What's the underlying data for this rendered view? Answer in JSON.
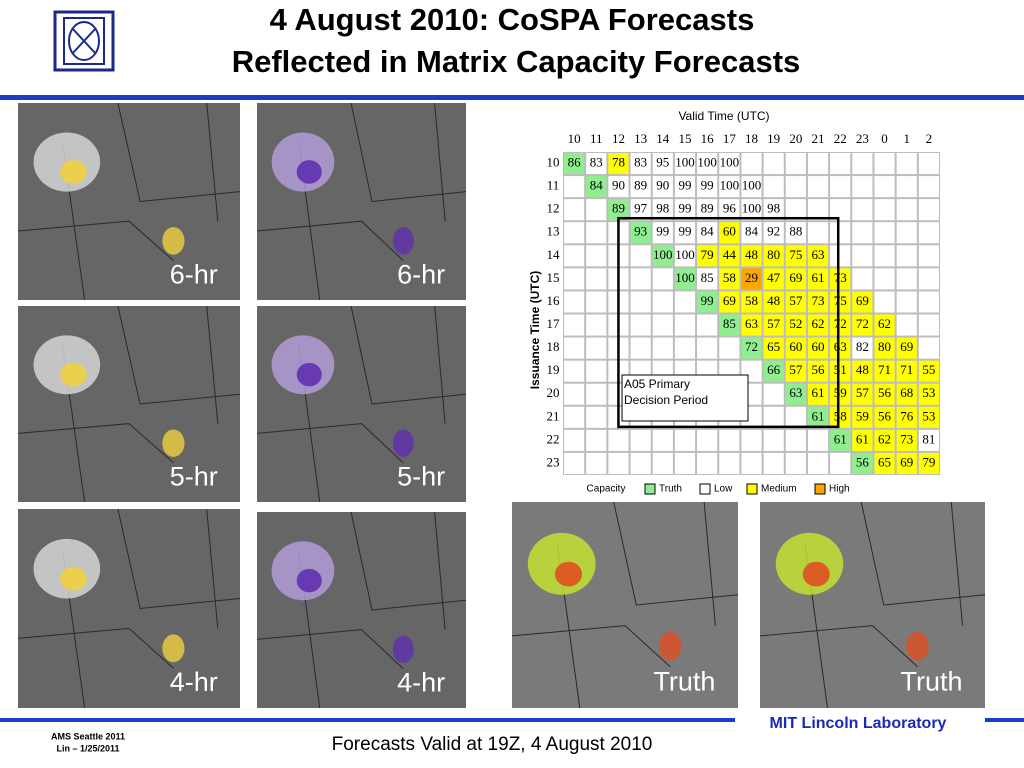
{
  "header": {
    "title_lines": [
      "4 August 2010: CoSPA Forecasts",
      "Reflected in Matrix Capacity Forecasts"
    ]
  },
  "panels": [
    {
      "label": "6-hr",
      "kind": "forecast-gray"
    },
    {
      "label": "6-hr",
      "kind": "forecast-purple"
    },
    {
      "label": "5-hr",
      "kind": "forecast-gray"
    },
    {
      "label": "5-hr",
      "kind": "forecast-purple"
    },
    {
      "label": "4-hr",
      "kind": "forecast-gray"
    },
    {
      "label": "4-hr",
      "kind": "forecast-purple"
    },
    {
      "label": "Truth",
      "kind": "truth"
    },
    {
      "label": "Truth",
      "kind": "truth"
    }
  ],
  "matrix": {
    "x_label": "Valid Time (UTC)",
    "y_label": "Issuance Time (UTC)",
    "columns": [
      "10",
      "11",
      "12",
      "13",
      "14",
      "15",
      "16",
      "17",
      "18",
      "19",
      "20",
      "21",
      "22",
      "23",
      "0",
      "1",
      "2"
    ],
    "level_colors": {
      "Truth": "#90ee90",
      "Low": "#ffffff",
      "Medium": "#ffff00",
      "High": "#ffa500"
    },
    "rows": [
      {
        "label": "10",
        "cells": [
          86,
          83,
          78,
          83,
          95,
          100,
          100,
          100,
          null,
          null,
          null,
          null,
          null,
          null,
          null,
          null,
          null
        ],
        "levels": [
          "Truth",
          "Low",
          "Medium",
          "Low",
          "Low",
          "Low",
          "Low",
          "Low",
          null,
          null,
          null,
          null,
          null,
          null,
          null,
          null,
          null
        ]
      },
      {
        "label": "11",
        "cells": [
          null,
          84,
          90,
          89,
          90,
          99,
          99,
          100,
          100,
          null,
          null,
          null,
          null,
          null,
          null,
          null,
          null
        ],
        "levels": [
          null,
          "Truth",
          "Low",
          "Low",
          "Low",
          "Low",
          "Low",
          "Low",
          "Low",
          null,
          null,
          null,
          null,
          null,
          null,
          null,
          null
        ]
      },
      {
        "label": "12",
        "cells": [
          null,
          null,
          89,
          97,
          98,
          99,
          89,
          96,
          100,
          98,
          null,
          null,
          null,
          null,
          null,
          null,
          null
        ],
        "levels": [
          null,
          null,
          "Truth",
          "Low",
          "Low",
          "Low",
          "Low",
          "Low",
          "Low",
          "Low",
          null,
          null,
          null,
          null,
          null,
          null,
          null
        ]
      },
      {
        "label": "13",
        "cells": [
          null,
          null,
          null,
          93,
          99,
          99,
          84,
          60,
          84,
          92,
          88,
          null,
          null,
          null,
          null,
          null,
          null
        ],
        "levels": [
          null,
          null,
          null,
          "Truth",
          "Low",
          "Low",
          "Low",
          "Medium",
          "Low",
          "Low",
          "Low",
          null,
          null,
          null,
          null,
          null,
          null
        ]
      },
      {
        "label": "14",
        "cells": [
          null,
          null,
          null,
          null,
          100,
          100,
          79,
          44,
          48,
          80,
          75,
          63,
          null,
          null,
          null,
          null,
          null
        ],
        "levels": [
          null,
          null,
          null,
          null,
          "Truth",
          "Low",
          "Medium",
          "Medium",
          "Medium",
          "Medium",
          "Medium",
          "Medium",
          null,
          null,
          null,
          null,
          null
        ]
      },
      {
        "label": "15",
        "cells": [
          null,
          null,
          null,
          null,
          null,
          100,
          85,
          58,
          29,
          47,
          69,
          61,
          73,
          null,
          null,
          null,
          null
        ],
        "levels": [
          null,
          null,
          null,
          null,
          null,
          "Truth",
          "Low",
          "Medium",
          "High",
          "Medium",
          "Medium",
          "Medium",
          "Medium",
          null,
          null,
          null,
          null
        ]
      },
      {
        "label": "16",
        "cells": [
          null,
          null,
          null,
          null,
          null,
          null,
          99,
          69,
          58,
          48,
          57,
          73,
          75,
          69,
          null,
          null,
          null
        ],
        "levels": [
          null,
          null,
          null,
          null,
          null,
          null,
          "Truth",
          "Medium",
          "Medium",
          "Medium",
          "Medium",
          "Medium",
          "Medium",
          "Medium",
          null,
          null,
          null
        ]
      },
      {
        "label": "17",
        "cells": [
          null,
          null,
          null,
          null,
          null,
          null,
          null,
          85,
          63,
          57,
          52,
          62,
          72,
          72,
          62,
          null,
          null
        ],
        "levels": [
          null,
          null,
          null,
          null,
          null,
          null,
          null,
          "Truth",
          "Medium",
          "Medium",
          "Medium",
          "Medium",
          "Medium",
          "Medium",
          "Medium",
          null,
          null
        ]
      },
      {
        "label": "18",
        "cells": [
          null,
          null,
          null,
          null,
          null,
          null,
          null,
          null,
          72,
          65,
          60,
          60,
          63,
          82,
          80,
          69,
          null
        ],
        "levels": [
          null,
          null,
          null,
          null,
          null,
          null,
          null,
          null,
          "Truth",
          "Medium",
          "Medium",
          "Medium",
          "Medium",
          "Low",
          "Medium",
          "Medium",
          null
        ]
      },
      {
        "label": "19",
        "cells": [
          null,
          null,
          null,
          null,
          null,
          null,
          null,
          null,
          null,
          66,
          57,
          56,
          51,
          48,
          71,
          71,
          55
        ],
        "levels": [
          null,
          null,
          null,
          null,
          null,
          null,
          null,
          null,
          null,
          "Truth",
          "Medium",
          "Medium",
          "Medium",
          "Medium",
          "Medium",
          "Medium",
          "Medium"
        ]
      },
      {
        "label": "20",
        "cells": [
          null,
          null,
          null,
          null,
          null,
          null,
          null,
          null,
          null,
          null,
          63,
          61,
          59,
          57,
          56,
          68,
          53
        ],
        "levels": [
          null,
          null,
          null,
          null,
          null,
          null,
          null,
          null,
          null,
          null,
          "Truth",
          "Medium",
          "Medium",
          "Medium",
          "Medium",
          "Medium",
          "Medium"
        ]
      },
      {
        "label": "21",
        "cells": [
          null,
          null,
          null,
          null,
          null,
          null,
          null,
          null,
          null,
          null,
          null,
          61,
          58,
          59,
          56,
          76,
          53
        ],
        "levels": [
          null,
          null,
          null,
          null,
          null,
          null,
          null,
          null,
          null,
          null,
          null,
          "Truth",
          "Medium",
          "Medium",
          "Medium",
          "Medium",
          "Medium"
        ]
      },
      {
        "label": "22",
        "cells": [
          null,
          null,
          null,
          null,
          null,
          null,
          null,
          null,
          null,
          null,
          null,
          null,
          61,
          61,
          62,
          73,
          81
        ],
        "levels": [
          null,
          null,
          null,
          null,
          null,
          null,
          null,
          null,
          null,
          null,
          null,
          null,
          "Truth",
          "Medium",
          "Medium",
          "Medium",
          "Low"
        ]
      },
      {
        "label": "23",
        "cells": [
          null,
          null,
          null,
          null,
          null,
          null,
          null,
          null,
          null,
          null,
          null,
          null,
          null,
          56,
          65,
          69,
          79
        ],
        "levels": [
          null,
          null,
          null,
          null,
          null,
          null,
          null,
          null,
          null,
          null,
          null,
          null,
          null,
          "Truth",
          "Medium",
          "Medium",
          "Medium"
        ]
      }
    ],
    "annotation_lines": [
      "A05 Primary",
      "Decision Period"
    ],
    "legend": {
      "title": "Capacity",
      "items": [
        "Truth",
        "Low",
        "Medium",
        "High"
      ]
    }
  },
  "footer": {
    "venue": "AMS Seattle 2011",
    "author": "Lin – 1/25/2011",
    "caption": "Forecasts Valid at 19Z, 4 August 2010",
    "organization": "MIT Lincoln Laboratory"
  }
}
